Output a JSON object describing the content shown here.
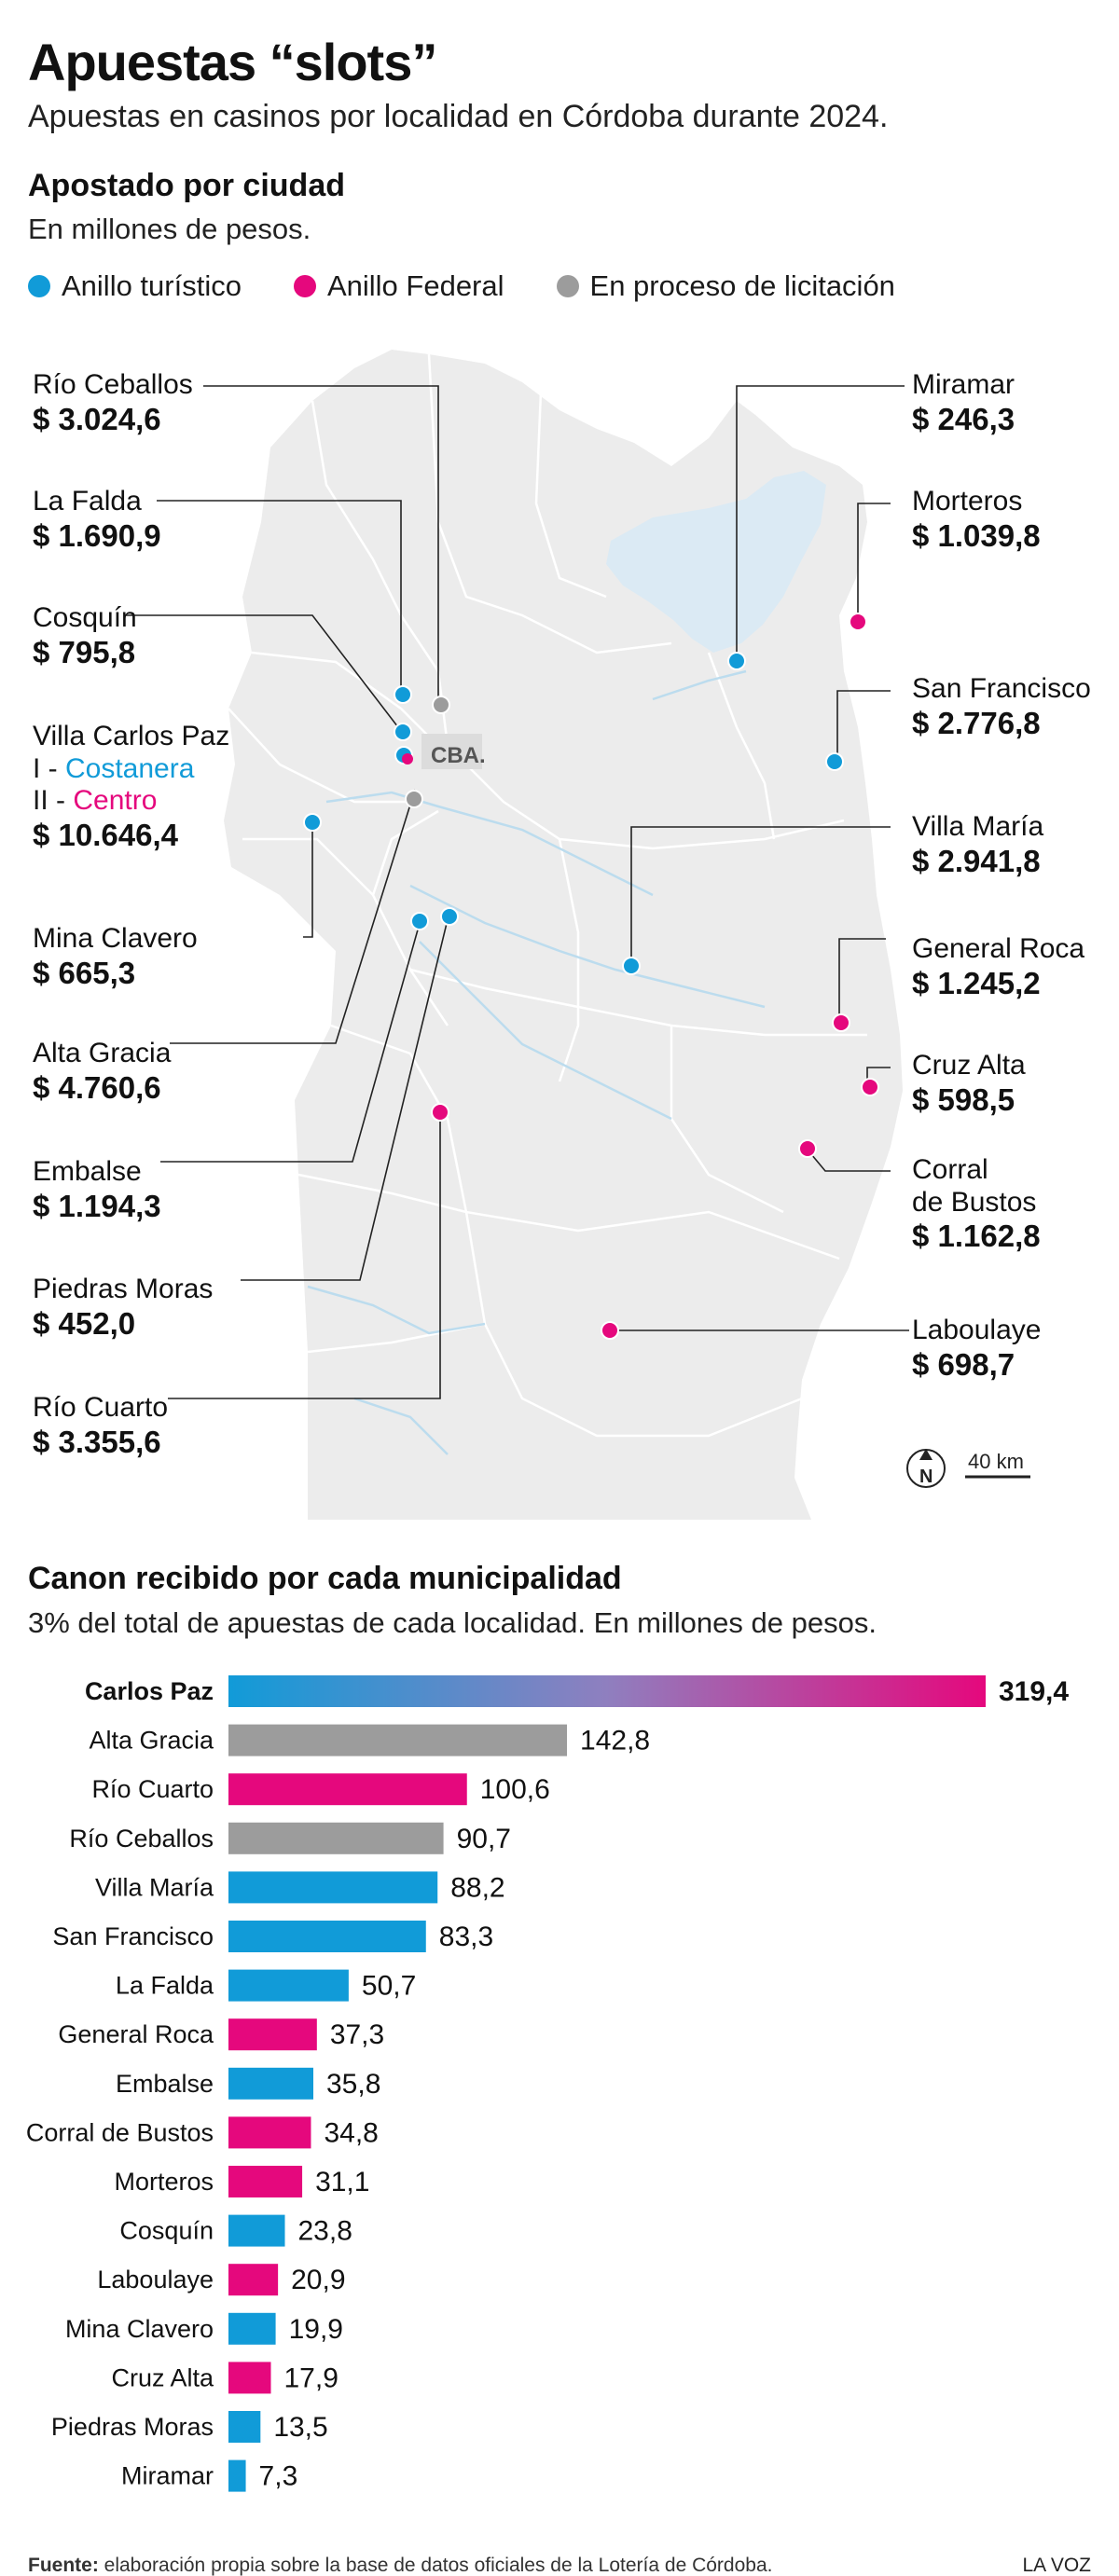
{
  "header": {
    "title": "Apuestas “slots”",
    "subtitle": "Apuestas en casinos por localidad en Córdoba durante 2024."
  },
  "map_section": {
    "title": "Apostado por ciudad",
    "subtitle": "En millones de pesos.",
    "legend": [
      {
        "label": "Anillo turístico",
        "color": "#119bd8"
      },
      {
        "label": "Anillo Federal",
        "color": "#e5087d"
      },
      {
        "label": "En proceso de licitación",
        "color": "#9c9c9c"
      }
    ],
    "capital_label": "CBA.",
    "scale_label": "40 km",
    "north_label": "N",
    "cities": {
      "rio_ceballos": {
        "name": "Río Ceballos",
        "value": "$ 3.024,6"
      },
      "la_falda": {
        "name": "La Falda",
        "value": "$ 1.690,9"
      },
      "cosquin": {
        "name": "Cosquín",
        "value": "$ 795,8"
      },
      "villa_carlos_paz": {
        "name": "Villa Carlos Paz",
        "line1_prefix": "I - ",
        "line1_label": "Costanera",
        "line2_prefix": "II - ",
        "line2_label": "Centro",
        "value": "$ 10.646,4"
      },
      "mina_clavero": {
        "name": "Mina Clavero",
        "value": "$ 665,3"
      },
      "alta_gracia": {
        "name": "Alta Gracia",
        "value": "$ 4.760,6"
      },
      "embalse": {
        "name": "Embalse",
        "value": "$ 1.194,3"
      },
      "piedras_moras": {
        "name": "Piedras Moras",
        "value": "$ 452,0"
      },
      "rio_cuarto": {
        "name": "Río Cuarto",
        "value": "$ 3.355,6"
      },
      "miramar": {
        "name": "Miramar",
        "value": "$ 246,3"
      },
      "morteros": {
        "name": "Morteros",
        "value": "$ 1.039,8"
      },
      "san_francisco": {
        "name": "San Francisco",
        "value": "$ 2.776,8"
      },
      "villa_maria": {
        "name": "Villa María",
        "value": "$ 2.941,8"
      },
      "general_roca": {
        "name": "General Roca",
        "value": "$ 1.245,2"
      },
      "cruz_alta": {
        "name": "Cruz Alta",
        "value": "$ 598,5"
      },
      "corral_de_bustos": {
        "name_line1": "Corral",
        "name_line2": "de Bustos",
        "value": "$ 1.162,8"
      },
      "laboulaye": {
        "name": "Laboulaye",
        "value": "$ 698,7"
      }
    }
  },
  "bar_section": {
    "title": "Canon recibido por cada municipalidad",
    "subtitle": "3% del total de apuestas de cada localidad. En millones de pesos."
  },
  "chart_data": {
    "type": "bar",
    "orientation": "horizontal",
    "categories": [
      "Carlos Paz",
      "Alta Gracia",
      "Río Cuarto",
      "Río Ceballos",
      "Villa María",
      "San Francisco",
      "La Falda",
      "General Roca",
      "Embalse",
      "Corral de Bustos",
      "Morteros",
      "Cosquín",
      "Laboulaye",
      "Mina Clavero",
      "Cruz Alta",
      "Piedras Moras",
      "Miramar"
    ],
    "values": [
      319.4,
      142.8,
      100.6,
      90.7,
      88.2,
      83.3,
      50.7,
      37.3,
      35.8,
      34.8,
      31.1,
      23.8,
      20.9,
      19.9,
      17.9,
      13.5,
      7.3
    ],
    "labels": [
      "319,4",
      "142,8",
      "100,6",
      "90,7",
      "88,2",
      "83,3",
      "50,7",
      "37,3",
      "35,8",
      "34,8",
      "31,1",
      "23,8",
      "20,9",
      "19,9",
      "17,9",
      "13,5",
      "7,3"
    ],
    "groups": [
      "mixed",
      "licitacion",
      "federal",
      "licitacion",
      "turistico",
      "turistico",
      "turistico",
      "federal",
      "turistico",
      "federal",
      "federal",
      "turistico",
      "federal",
      "turistico",
      "federal",
      "turistico",
      "turistico"
    ],
    "colors": {
      "turistico": "#119bd8",
      "federal": "#e5087d",
      "licitacion": "#9c9c9c"
    },
    "xlim": [
      0,
      319.4
    ]
  },
  "footer": {
    "source_label": "Fuente:",
    "source_text": " elaboración propia sobre la base de datos oficiales de la Lotería de Córdoba.",
    "brand": "LA VOZ"
  }
}
